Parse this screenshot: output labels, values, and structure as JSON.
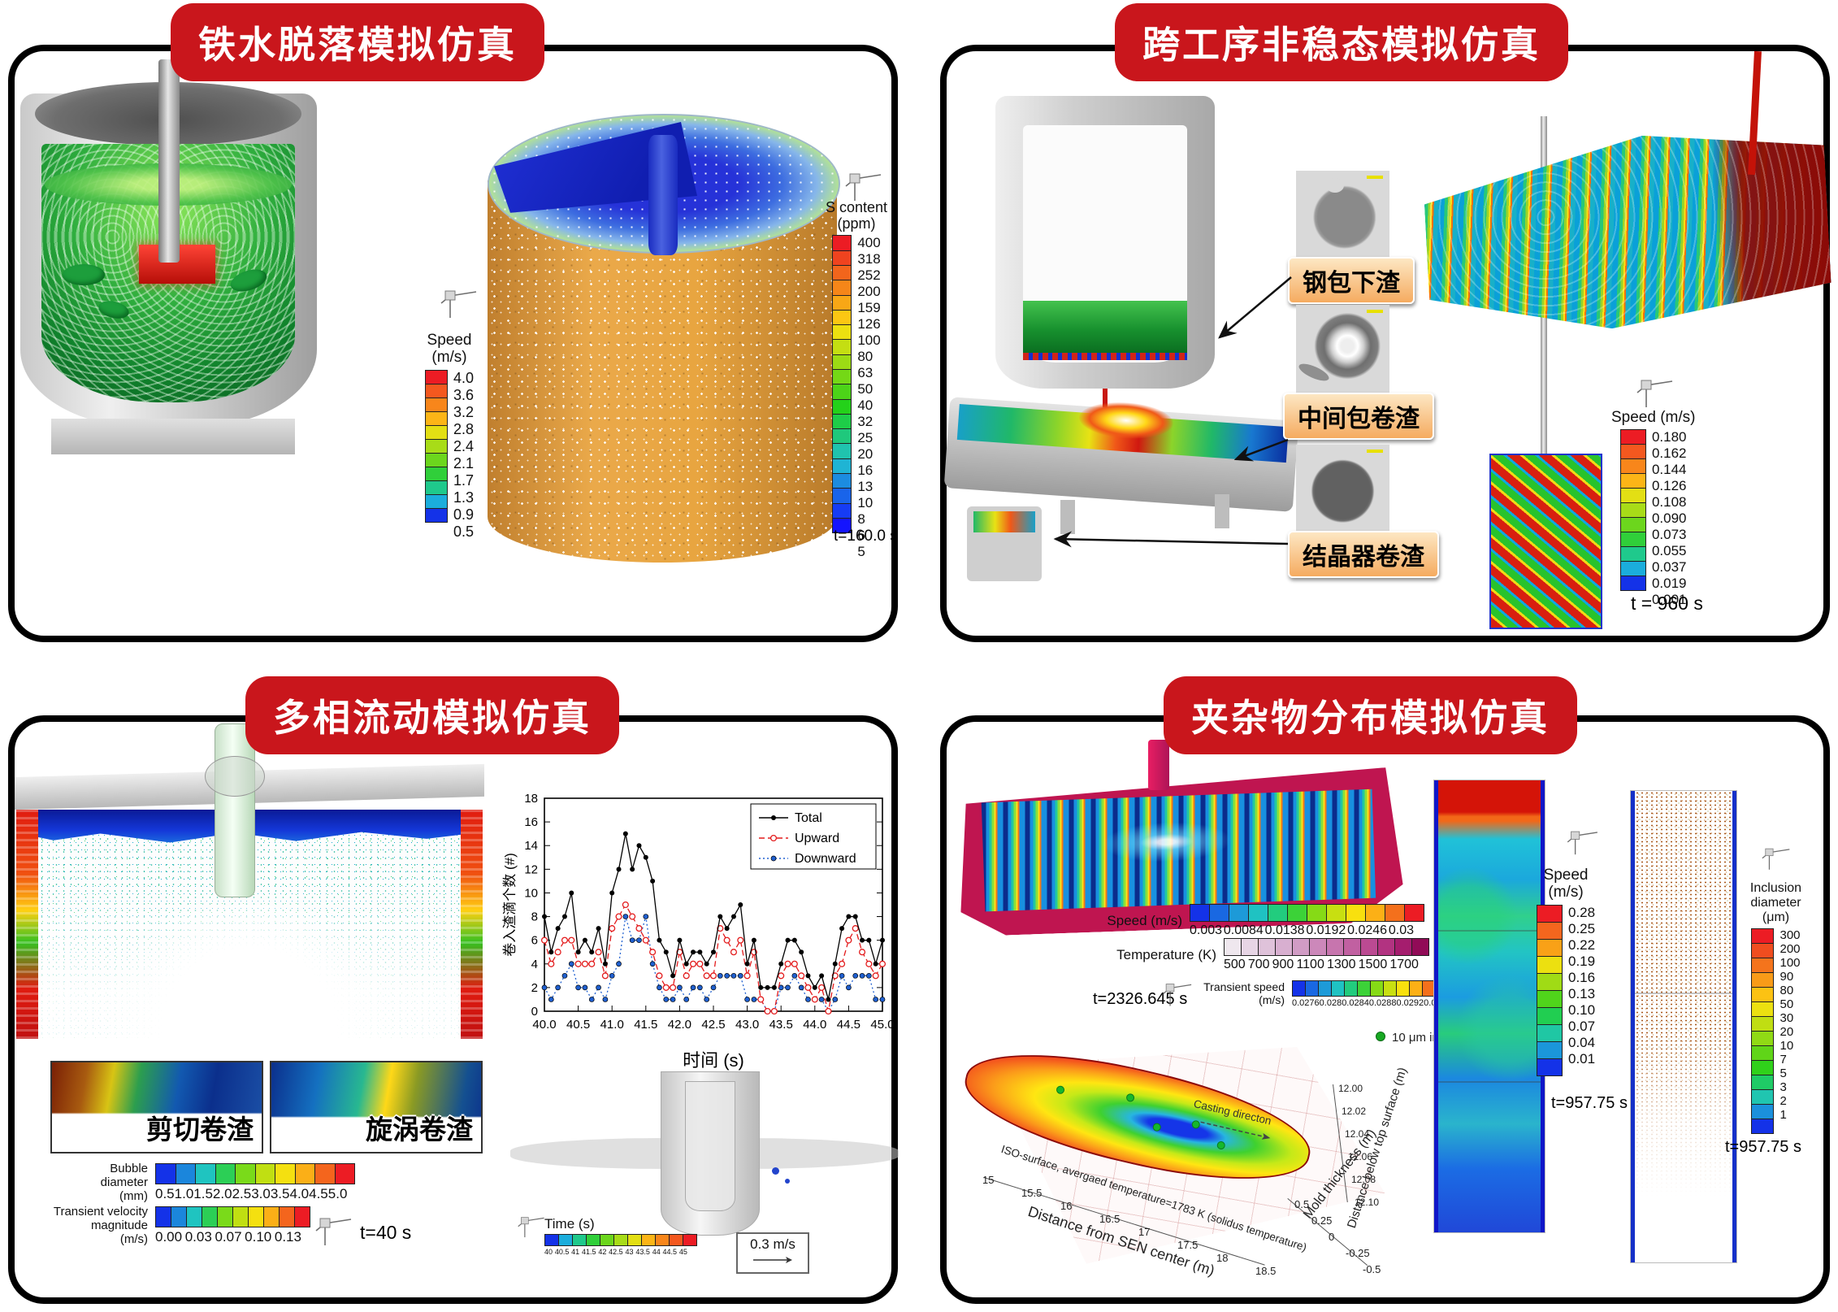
{
  "colors": {
    "banner_red": "#c9161c",
    "chip_bg": "#f5ab60",
    "accent_red": "#d02018",
    "accent_blue": "#1432e8"
  },
  "panels": {
    "p1": {
      "title": "铁水脱落模拟仿真",
      "speed_bar": {
        "title": "Speed",
        "unit": "(m/s)",
        "labels": [
          "4.0",
          "3.6",
          "3.2",
          "2.8",
          "2.4",
          "2.1",
          "1.7",
          "1.3",
          "0.9",
          "0.5"
        ],
        "colors": [
          "#ec1c24",
          "#f4581f",
          "#f8861b",
          "#fcb517",
          "#e3df14",
          "#a8dc18",
          "#6cd61d",
          "#30cf3a",
          "#1fc98c",
          "#1baddc",
          "#1432e8"
        ]
      },
      "s_bar": {
        "title": "S content",
        "unit": "(ppm)",
        "labels": [
          "400",
          "318",
          "252",
          "200",
          "159",
          "126",
          "100",
          "80",
          "63",
          "50",
          "40",
          "32",
          "25",
          "20",
          "16",
          "13",
          "10",
          "8",
          "6",
          "5"
        ],
        "colors": [
          "#ec1c24",
          "#ef431f",
          "#f2651c",
          "#f58619",
          "#f8a716",
          "#fbc713",
          "#ece010",
          "#c4de12",
          "#9cdb14",
          "#74d816",
          "#4cd418",
          "#24d11a",
          "#1ecd48",
          "#1fc87c",
          "#20c3ae",
          "#1fb4d4",
          "#1c8ce0",
          "#1964ea",
          "#163cf4",
          "#1414fe"
        ]
      },
      "timestamp": "t=160.0 s"
    },
    "p2": {
      "title": "跨工序非稳态模拟仿真",
      "chips": [
        "钢包下渣",
        "中间包卷渣",
        "结晶器卷渣"
      ],
      "speed_bar": {
        "title": "Speed (m/s)",
        "unit": "",
        "labels": [
          "0.180",
          "0.162",
          "0.144",
          "0.126",
          "0.108",
          "0.090",
          "0.073",
          "0.055",
          "0.037",
          "0.019",
          "0.001"
        ],
        "colors": [
          "#ec1c24",
          "#f4581f",
          "#f8861b",
          "#fcb517",
          "#e3df14",
          "#a8dc18",
          "#6cd61d",
          "#30cf3a",
          "#1fc98c",
          "#1baddc",
          "#1432e8"
        ]
      },
      "timestamp": "t = 960 s"
    },
    "p3": {
      "title": "多相流动模拟仿真",
      "insets": [
        "剪切卷渣",
        "旋涡卷渣"
      ],
      "bubble_bar": {
        "title": "Bubble diameter",
        "unit": "(mm)",
        "labels": [
          "0.5",
          "1.0",
          "1.5",
          "2.0",
          "2.5",
          "3.0",
          "3.5",
          "4.0",
          "4.5",
          "5.0"
        ],
        "colors": [
          "#1432e8",
          "#1b86dc",
          "#1fc4c0",
          "#2ccf56",
          "#7ada1a",
          "#c0df12",
          "#f4e010",
          "#fbaf17",
          "#f4651d",
          "#ec1c24"
        ]
      },
      "tvm_bar": {
        "title": "Transient velocity magnitude",
        "unit": "(m/s)",
        "labels": [
          "0.00",
          "0.03",
          "0.07",
          "0.10",
          "0.13"
        ],
        "colors": [
          "#1432e8",
          "#1b86dc",
          "#1fc4c0",
          "#2ccf56",
          "#7ada1a",
          "#c0df12",
          "#f4e010",
          "#fbaf17",
          "#f4651d",
          "#ec1c24"
        ]
      },
      "timestamp": "t=40 s",
      "time_bar": {
        "title": "Time (s)",
        "unit": "",
        "labels": [
          "40",
          "40.5",
          "41",
          "41.5",
          "42",
          "42.5",
          "43",
          "43.5",
          "44",
          "44.5",
          "45"
        ],
        "colors": [
          "#1432e8",
          "#1baddc",
          "#1fc98c",
          "#30cf3a",
          "#6cd61d",
          "#a8dc18",
          "#e3df14",
          "#fcb517",
          "#f8861b",
          "#f4581f",
          "#ec1c24"
        ]
      },
      "scale_label": "0.3 m/s"
    },
    "p4": {
      "title": "夹杂物分布模拟仿真",
      "speed_h": {
        "title": "Speed (m/s)",
        "unit": "",
        "labels": [
          "0.003",
          "0.0084",
          "0.0138",
          "0.0192",
          "0.0246",
          "0.03"
        ],
        "colors": [
          "#1432e8",
          "#1968e2",
          "#1d9ad8",
          "#1fc2c2",
          "#22cc7e",
          "#3cd238",
          "#86da16",
          "#c8df11",
          "#f8e00e",
          "#fcb016",
          "#f4701c",
          "#ec1c24"
        ]
      },
      "temp_bar": {
        "title": "Temperature (K)",
        "unit": "",
        "labels": [
          "500",
          "700",
          "900",
          "1100",
          "1300",
          "1500",
          "1700"
        ],
        "colors": [
          "#efe7ee",
          "#e7d5e5",
          "#dfc2da",
          "#d8afd0",
          "#d19cc5",
          "#cc88ba",
          "#c775ae",
          "#c160a1",
          "#bb4a92",
          "#b23381",
          "#a51d6e",
          "#910b57"
        ]
      },
      "tspeed_bar": {
        "title": "Transient speed",
        "unit": "(m/s)",
        "labels": [
          "0.0276",
          "0.028",
          "0.0284",
          "0.0288",
          "0.0292",
          "0.0296"
        ],
        "colors": [
          "#1432e8",
          "#1968e2",
          "#1d9ad8",
          "#1fc2c2",
          "#22cc7e",
          "#3cd238",
          "#86da16",
          "#c8df11",
          "#f8e00e",
          "#fcb016",
          "#f4701c",
          "#ec1c24"
        ]
      },
      "t_iso": "t=2326.645 s",
      "inclusion_legend": "10 μm inclusions",
      "iso": {
        "surface_label": "ISO-surface, avergaed temperature=1783 K (solidus temperature)",
        "xlabel": "Distance from SEN center (m)",
        "xticks": [
          "15",
          "15.5",
          "16",
          "16.5",
          "17",
          "17.5",
          "18",
          "18.5"
        ],
        "ylabel": "Mold thickness (m)",
        "yticks": [
          "0.5",
          "0.25",
          "0",
          "-0.25",
          "-0.5"
        ],
        "zlabel": "Distance below top surface (m)",
        "zticks": [
          "12.00",
          "12.02",
          "12.04",
          "12.06",
          "12.08",
          "12.10"
        ],
        "casting_label": "Casting directon"
      },
      "speed_v": {
        "title": "Speed",
        "unit": "(m/s)",
        "labels": [
          "0.28",
          "0.25",
          "0.22",
          "0.19",
          "0.16",
          "0.13",
          "0.10",
          "0.07",
          "0.04",
          "0.01"
        ],
        "colors": [
          "#ec1c24",
          "#f4661e",
          "#f9a117",
          "#ece010",
          "#a0db15",
          "#50d41b",
          "#21ce51",
          "#1fc7a4",
          "#1b96da",
          "#1432e8"
        ]
      },
      "t_speed_v": "t=957.75 s",
      "incl_bar": {
        "title": "Inclusion diameter",
        "unit": "(μm)",
        "labels": [
          "300",
          "200",
          "100",
          "90",
          "80",
          "50",
          "30",
          "20",
          "10",
          "7",
          "5",
          "3",
          "2",
          "1"
        ],
        "colors": [
          "#ec1c24",
          "#f04d1f",
          "#f4741c",
          "#f89b18",
          "#fcc213",
          "#ece010",
          "#c0de12",
          "#90da15",
          "#60d518",
          "#30d11b",
          "#1fcb66",
          "#20c5b0",
          "#1b90dc",
          "#1432e8"
        ]
      },
      "t_incl": "t=957.75 s"
    }
  },
  "chart_data": {
    "type": "line",
    "title": "",
    "xlabel": "时间 (s)",
    "ylabel": "卷入渣滴个数 (#)",
    "xlim": [
      40,
      45
    ],
    "ylim": [
      0,
      18
    ],
    "xticks": [
      40.0,
      40.5,
      41.0,
      41.5,
      42.0,
      42.5,
      43.0,
      43.5,
      44.0,
      44.5,
      45.0
    ],
    "yticks": [
      0,
      2,
      4,
      6,
      8,
      10,
      12,
      14,
      16,
      18
    ],
    "x_step": 0.1,
    "legend_position": "top-right",
    "grid": false,
    "series": [
      {
        "name": "Total",
        "color": "#000000",
        "style": "solid",
        "marker": "filled",
        "values": [
          8,
          5,
          7,
          8,
          10,
          5,
          6,
          5,
          7,
          4,
          10,
          12,
          15,
          12,
          14,
          13,
          11,
          6,
          5,
          3,
          6,
          4,
          5,
          5,
          4,
          5,
          8,
          7,
          8,
          9,
          4,
          6,
          2,
          2,
          2,
          4,
          6,
          6,
          5,
          3,
          2,
          3,
          1,
          4,
          7,
          8,
          8,
          6,
          6,
          4,
          6
        ]
      },
      {
        "name": "Upward",
        "color": "#e31b1c",
        "style": "dashed",
        "marker": "open",
        "values": [
          6,
          4,
          5,
          6,
          6,
          4,
          4,
          4,
          5,
          3,
          7,
          8,
          9,
          8,
          7,
          6,
          5,
          3,
          2,
          2,
          5,
          3,
          4,
          4,
          3,
          3,
          7,
          6,
          5,
          6,
          3,
          5,
          1,
          0,
          0,
          3,
          4,
          4,
          3,
          2,
          1,
          2,
          0,
          3,
          4,
          6,
          7,
          5,
          4,
          3,
          4
        ]
      },
      {
        "name": "Downward",
        "color": "#2060d0",
        "style": "dotted",
        "marker": "filled",
        "values": [
          2,
          1,
          2,
          3,
          4,
          2,
          2,
          1,
          2,
          1,
          3,
          4,
          8,
          6,
          6,
          8,
          4,
          2,
          1,
          1,
          2,
          1,
          2,
          2,
          1,
          2,
          3,
          3,
          3,
          3,
          1,
          1,
          1,
          0,
          0,
          2,
          2,
          3,
          2,
          1,
          1,
          1,
          0,
          1,
          3,
          2,
          3,
          3,
          3,
          1,
          1
        ]
      }
    ]
  }
}
